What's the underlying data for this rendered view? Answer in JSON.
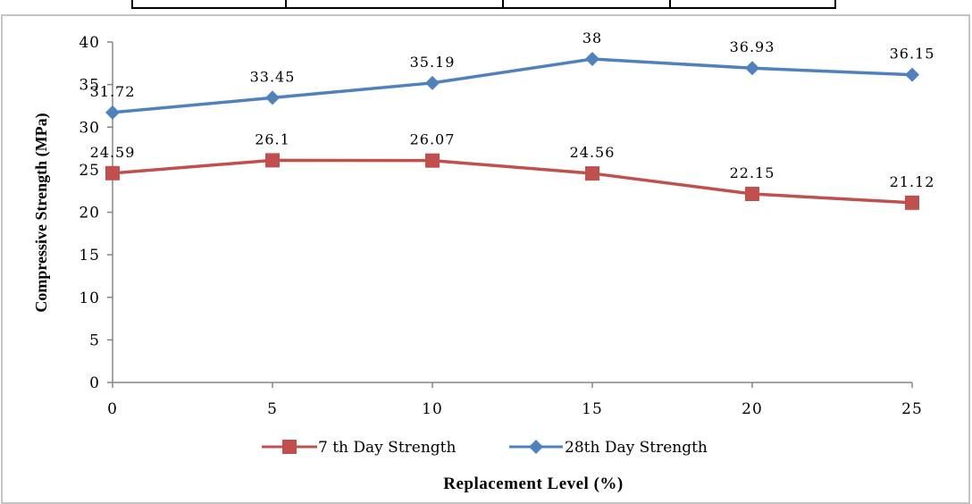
{
  "chart_data": {
    "type": "line",
    "xlabel": "Replacement Level (%)",
    "ylabel": "Compressive Strength (MPa)",
    "x": [
      0,
      5,
      10,
      15,
      20,
      25
    ],
    "x_tick_labels": [
      "0",
      "5",
      "10",
      "15",
      "20",
      "25"
    ],
    "ylim": [
      0,
      40
    ],
    "y_ticks": [
      0,
      5,
      10,
      15,
      20,
      25,
      30,
      35,
      40
    ],
    "y_tick_labels": [
      "0",
      "5",
      "10",
      "15",
      "20",
      "25",
      "30",
      "35",
      "40"
    ],
    "grid": false,
    "legend_position": "bottom",
    "series": [
      {
        "name": "7 th Day Strength",
        "values": [
          24.59,
          26.1,
          26.07,
          24.56,
          22.15,
          21.12
        ],
        "labels": [
          "24.59",
          "26.1",
          "26.07",
          "24.56",
          "22.15",
          "21.12"
        ],
        "color": "#C0504D",
        "marker": "square"
      },
      {
        "name": "28th Day Strength",
        "values": [
          31.72,
          33.45,
          35.19,
          38,
          36.93,
          36.15
        ],
        "labels": [
          "31.72",
          "33.45",
          "35.19",
          "38",
          "36.93",
          "36.15"
        ],
        "color": "#4F81BD",
        "marker": "diamond"
      }
    ]
  }
}
